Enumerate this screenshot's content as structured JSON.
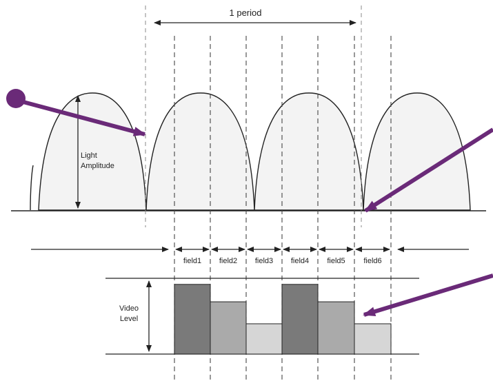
{
  "diagram": {
    "period_label": "1 period",
    "amplitude_label": [
      "Light",
      "Amplitude"
    ],
    "video_label": [
      "Video",
      "Level"
    ],
    "fields": [
      "field1",
      "field2",
      "field3",
      "field4",
      "field5",
      "field6"
    ],
    "video_levels": [
      0.92,
      0.69,
      0.4,
      0.92,
      0.69,
      0.4
    ],
    "colors": {
      "hump_fill": "#f3f3f3",
      "bar_dark": "#7a7a7a",
      "bar_mid": "#aaaaaa",
      "bar_light": "#d6d6d6",
      "arrow": "#6a2a78",
      "line": "#222222",
      "dashed": "#444444"
    }
  }
}
